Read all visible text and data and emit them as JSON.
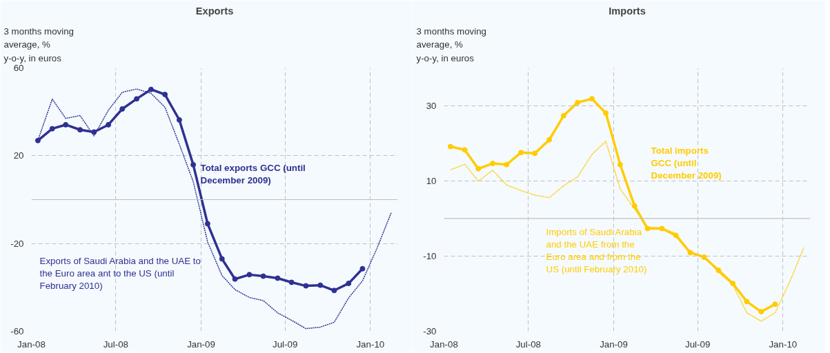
{
  "chart_data": [
    {
      "type": "line",
      "title": "Exports",
      "ylabel": "3 months moving average, % y-o-y, in euros",
      "xlim": [
        "2008-01-01",
        "2010-03-01"
      ],
      "ylim": [
        -60,
        60
      ],
      "yticks": [
        -60,
        -20,
        20,
        60
      ],
      "xticks": [
        {
          "value": "2008-01-01",
          "label": "Jan-08"
        },
        {
          "value": "2008-07-01",
          "label": "Jul-08"
        },
        {
          "value": "2009-01-01",
          "label": "Jan-09"
        },
        {
          "value": "2009-07-01",
          "label": "Jul-09"
        },
        {
          "value": "2010-01-01",
          "label": "Jan-10"
        }
      ],
      "grid": true,
      "legend": false,
      "ref_lines": [
        {
          "axis": "y",
          "value": 0,
          "color": "#bfbfbf",
          "line_style": "solid"
        }
      ],
      "series": [
        {
          "name": "Exports of Saudi Arabia and the UAE to the Euro area ant to the US (until February 2010)",
          "color": "#2e3192",
          "line_style": "dotted",
          "marker": "none",
          "x": [
            "2008-01-15",
            "2008-02-15",
            "2008-03-15",
            "2008-04-15",
            "2008-05-15",
            "2008-06-15",
            "2008-07-15",
            "2008-08-15",
            "2008-09-15",
            "2008-10-15",
            "2008-11-15",
            "2008-12-15",
            "2009-01-15",
            "2009-02-15",
            "2009-03-15",
            "2009-04-15",
            "2009-05-15",
            "2009-06-15",
            "2009-07-15",
            "2009-08-15",
            "2009-09-15",
            "2009-10-15",
            "2009-11-15",
            "2009-12-15",
            "2010-01-15",
            "2010-02-15"
          ],
          "values": [
            27,
            45.8,
            37,
            38.3,
            29,
            40.7,
            48.9,
            50.4,
            48.4,
            42.1,
            25.2,
            8.2,
            -19.3,
            -34.6,
            -41,
            -44.6,
            -46,
            -51.6,
            -55,
            -58.8,
            -58.1,
            -55.9,
            -44.8,
            -37,
            -22.3,
            -5.9
          ]
        },
        {
          "name": "Total exports GCC (until December 2009)",
          "color": "#2e3192",
          "line_style": "solid",
          "marker": "circle",
          "x": [
            "2008-01-15",
            "2008-02-15",
            "2008-03-15",
            "2008-04-15",
            "2008-05-15",
            "2008-06-15",
            "2008-07-15",
            "2008-08-15",
            "2008-09-15",
            "2008-10-15",
            "2008-11-15",
            "2008-12-15",
            "2009-01-15",
            "2009-02-15",
            "2009-03-15",
            "2009-04-15",
            "2009-05-15",
            "2009-06-15",
            "2009-07-15",
            "2009-08-15",
            "2009-09-15",
            "2009-10-15",
            "2009-11-15",
            "2009-12-15"
          ],
          "values": [
            26.9,
            32.3,
            34.1,
            31.8,
            30.8,
            34.1,
            41.3,
            45.9,
            50.2,
            47.9,
            36.3,
            15.9,
            -11,
            -27,
            -36.2,
            -34.2,
            -34.9,
            -35.8,
            -37.7,
            -39.3,
            -39,
            -41.4,
            -38.2,
            -31.5
          ]
        }
      ]
    },
    {
      "type": "line",
      "title": "Imports",
      "ylabel": "3 months moving average, % y-o-y, in euros",
      "xlim": [
        "2008-01-01",
        "2010-03-01"
      ],
      "ylim": [
        -30,
        40
      ],
      "yticks": [
        -30,
        -10,
        10,
        30
      ],
      "xticks": [
        {
          "value": "2008-01-01",
          "label": "Jan-08"
        },
        {
          "value": "2008-07-01",
          "label": "Jul-08"
        },
        {
          "value": "2009-01-01",
          "label": "Jan-09"
        },
        {
          "value": "2009-07-01",
          "label": "Jul-09"
        },
        {
          "value": "2010-01-01",
          "label": "Jan-10"
        }
      ],
      "grid": true,
      "legend": false,
      "ref_lines": [
        {
          "axis": "y",
          "value": 0,
          "color": "#bfbfbf",
          "line_style": "solid"
        }
      ],
      "series": [
        {
          "name": "Imports of Saudi Arabia and the UAE from the Euro area and from the US (until February 2010)",
          "color": "#ffcc00",
          "line_style": "dotted",
          "marker": "none",
          "x": [
            "2008-01-15",
            "2008-02-15",
            "2008-03-15",
            "2008-04-15",
            "2008-05-15",
            "2008-06-15",
            "2008-07-15",
            "2008-08-15",
            "2008-09-15",
            "2008-10-15",
            "2008-11-15",
            "2008-12-15",
            "2009-01-15",
            "2009-02-15",
            "2009-03-15",
            "2009-04-15",
            "2009-05-15",
            "2009-06-15",
            "2009-07-15",
            "2009-08-15",
            "2009-09-15",
            "2009-10-15",
            "2009-11-15",
            "2009-12-15",
            "2010-01-15",
            "2010-02-15"
          ],
          "values": [
            12.9,
            14.4,
            9.9,
            12.8,
            8.9,
            7.4,
            6.2,
            5.5,
            8.7,
            11,
            17,
            20.5,
            7.8,
            2.5,
            -2.3,
            -2.5,
            -4,
            -8.9,
            -10.1,
            -14.3,
            -17.7,
            -25.1,
            -27.3,
            -25.1,
            -17,
            -7.8
          ]
        },
        {
          "name": "Total imports GCC (until December 2009)",
          "color": "#ffcc00",
          "line_style": "solid",
          "marker": "circle",
          "x": [
            "2008-01-15",
            "2008-02-15",
            "2008-03-15",
            "2008-04-15",
            "2008-05-15",
            "2008-06-15",
            "2008-07-15",
            "2008-08-15",
            "2008-09-15",
            "2008-10-15",
            "2008-11-15",
            "2008-12-15",
            "2009-01-15",
            "2009-02-15",
            "2009-03-15",
            "2009-04-15",
            "2009-05-15",
            "2009-06-15",
            "2009-07-15",
            "2009-08-15",
            "2009-09-15",
            "2009-10-15",
            "2009-11-15",
            "2009-12-15"
          ],
          "values": [
            19.1,
            18.2,
            13.2,
            14.6,
            14.3,
            17.5,
            17.3,
            20.9,
            27.3,
            30.8,
            31.8,
            28,
            14.3,
            3.3,
            -2.7,
            -2.7,
            -4.5,
            -9.1,
            -10.3,
            -13.8,
            -17.3,
            -22.1,
            -24.8,
            -22.8
          ]
        }
      ]
    }
  ]
}
